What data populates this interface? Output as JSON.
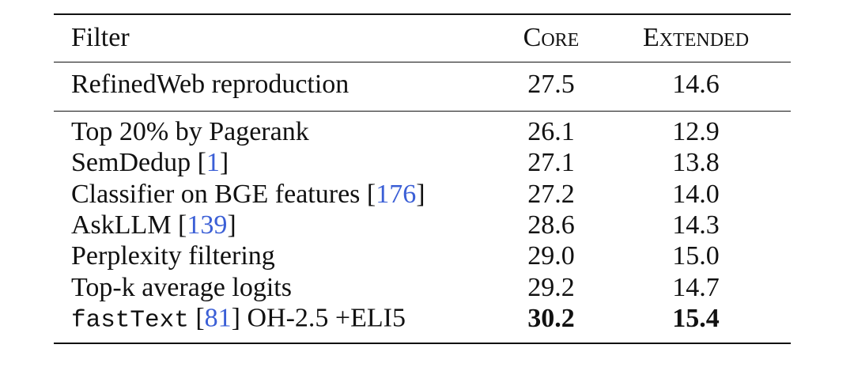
{
  "table": {
    "header": [
      "Filter",
      "Core",
      "Extended"
    ],
    "groups": [
      [
        {
          "filter": [
            {
              "text": "RefinedWeb reproduction"
            }
          ],
          "values": [
            "27.5",
            "14.6"
          ]
        }
      ],
      [
        {
          "filter": [
            {
              "text": "Top 20% by Pagerank"
            }
          ],
          "values": [
            "26.1",
            "12.9"
          ]
        },
        {
          "filter": [
            {
              "text": "SemDedup ["
            },
            {
              "text": "1",
              "link": true
            },
            {
              "text": "]"
            }
          ],
          "values": [
            "27.1",
            "13.8"
          ]
        },
        {
          "filter": [
            {
              "text": "Classifier on BGE features ["
            },
            {
              "text": "176",
              "link": true
            },
            {
              "text": "]"
            }
          ],
          "values": [
            "27.2",
            "14.0"
          ]
        },
        {
          "filter": [
            {
              "text": "AskLLM ["
            },
            {
              "text": "139",
              "link": true
            },
            {
              "text": "]"
            }
          ],
          "values": [
            "28.6",
            "14.3"
          ]
        },
        {
          "filter": [
            {
              "text": "Perplexity filtering"
            }
          ],
          "values": [
            "29.0",
            "15.0"
          ]
        },
        {
          "filter": [
            {
              "text": "Top-k average logits"
            }
          ],
          "values": [
            "29.2",
            "14.7"
          ]
        },
        {
          "filter": [
            {
              "text": "fastText",
              "font": "mono"
            },
            {
              "text": " ["
            },
            {
              "text": "81",
              "link": true
            },
            {
              "text": "] OH-2.5 +ELI5"
            }
          ],
          "values": [
            "30.2",
            "15.4"
          ],
          "bold": true
        }
      ]
    ]
  }
}
